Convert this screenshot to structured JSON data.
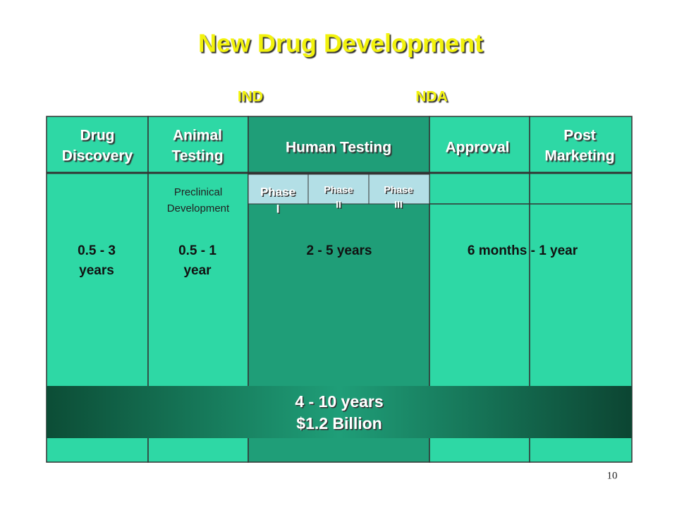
{
  "title": "New Drug Development",
  "milestones": [
    "IND",
    "NDA"
  ],
  "columns": [
    {
      "header": [
        "Drug",
        "Discovery"
      ],
      "duration": [
        "0.5 - 3",
        "years"
      ]
    },
    {
      "header": [
        "Animal",
        "Testing"
      ],
      "subheader": [
        "Preclinical",
        "Development"
      ],
      "duration": [
        "0.5 - 1",
        "year"
      ]
    },
    {
      "header": [
        "Human Testing"
      ],
      "phases": [
        [
          "Phase",
          "I"
        ],
        [
          "Phase",
          "II"
        ],
        [
          "Phase",
          "III"
        ]
      ],
      "duration": [
        "2 - 5 years"
      ]
    },
    {
      "header": [
        "Approval"
      ]
    },
    {
      "header": [
        "Post",
        "Marketing"
      ]
    }
  ],
  "approval_duration": "6 months - 1 year",
  "total": [
    "4 - 10 years",
    "$1.2 Billion"
  ],
  "page_number": "10"
}
